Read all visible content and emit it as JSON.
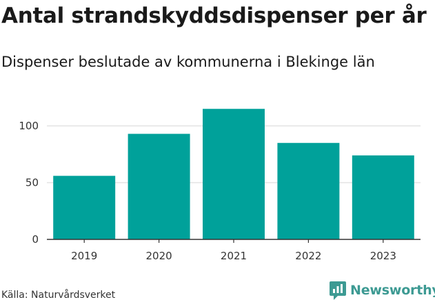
{
  "title": "Antal strandskyddsdispenser per år",
  "subtitle": "Dispenser beslutade av kommunerna i Blekinge län",
  "source": "Källa: Naturvårdsverket",
  "brand": {
    "name": "Newsworthy",
    "icon": "newsworthy-logo-icon",
    "color": "#3d9a93"
  },
  "chart_data": {
    "type": "bar",
    "categories": [
      "2019",
      "2020",
      "2021",
      "2022",
      "2023"
    ],
    "values": [
      56,
      93,
      115,
      85,
      74
    ],
    "ylim": [
      0,
      120
    ],
    "yticks": [
      0,
      50,
      100
    ],
    "grid": true,
    "bar_color": "#00a19a",
    "grid_color": "#e3e3e3"
  }
}
